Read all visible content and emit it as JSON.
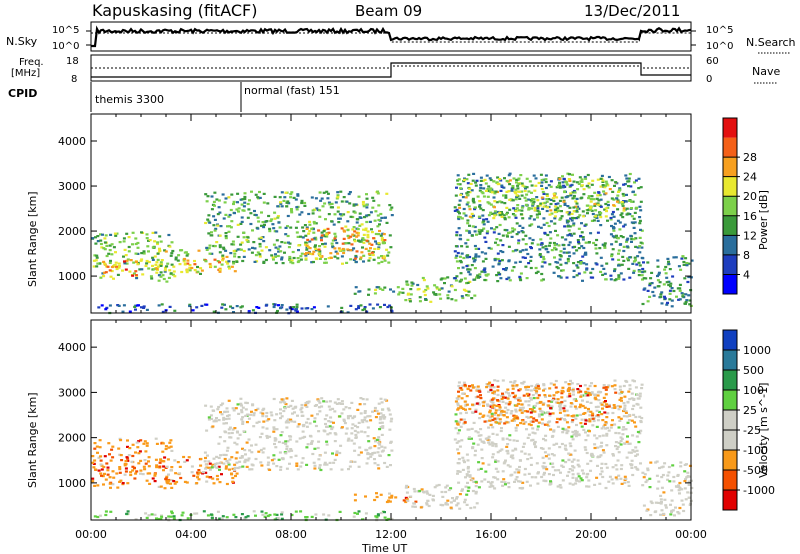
{
  "header": {
    "station": "Kapuskasing (fitACF)",
    "beam": "Beam 09",
    "date": "13/Dec/2011"
  },
  "top_panels": {
    "nsky_label": "N.Sky",
    "nsky_ticks": [
      "10^5",
      "10^0"
    ],
    "nsearch_label": "N.Search",
    "nsearch_ticks": [
      "10^5",
      "10^0"
    ],
    "freq_label": "Freq.",
    "freq_unit": "[MHz]",
    "freq_ticks": [
      "18",
      "8"
    ],
    "nave_label": "Nave",
    "nave_ticks": [
      "60",
      "0"
    ],
    "cpid_label": "CPID",
    "cpid_entries": [
      "themis 3300",
      "normal (fast) 151"
    ]
  },
  "x_axis": {
    "label": "Time UT",
    "ticks": [
      "00:00",
      "04:00",
      "08:00",
      "12:00",
      "16:00",
      "20:00",
      "00:00"
    ]
  },
  "colors": {
    "power": [
      "#0000ff",
      "#1e3dbe",
      "#2a6e9c",
      "#3a9a3a",
      "#7cd04a",
      "#e8e830",
      "#f7a020",
      "#f46018",
      "#e31010"
    ],
    "velocity": [
      "#e00000",
      "#f45000",
      "#f99a1a",
      "#cfcfc6",
      "#cfcfc6",
      "#5fd040",
      "#2a9a4a",
      "#2a7a9a",
      "#1040c0"
    ]
  },
  "chart_data": [
    {
      "type": "heatmap",
      "title": "Power",
      "xlabel": "Time UT",
      "ylabel": "Slant Range [km]",
      "xlim_hours": [
        0,
        24
      ],
      "ylim": [
        180,
        4600
      ],
      "y_ticks": [
        1000,
        2000,
        3000,
        4000
      ],
      "colorbar": {
        "label": "Power [dB]",
        "ticks": [
          "4",
          "8",
          "12",
          "16",
          "20",
          "24",
          "28"
        ],
        "range": [
          0,
          30
        ]
      },
      "echo_regions": [
        {
          "t": [
            0.0,
            3.2
          ],
          "r": [
            900,
            2000
          ],
          "level": 14
        },
        {
          "t": [
            0.4,
            1.8
          ],
          "r": [
            1000,
            1400
          ],
          "level": 24
        },
        {
          "t": [
            2.5,
            4.4
          ],
          "r": [
            1000,
            1600
          ],
          "level": 16
        },
        {
          "t": [
            3.6,
            5.8
          ],
          "r": [
            1100,
            1450
          ],
          "level": 20
        },
        {
          "t": [
            4.5,
            12.0
          ],
          "r": [
            1300,
            2900
          ],
          "level": 12
        },
        {
          "t": [
            8.5,
            11.8
          ],
          "r": [
            1400,
            2100
          ],
          "level": 22
        },
        {
          "t": [
            10.5,
            13.0
          ],
          "r": [
            600,
            800
          ],
          "level": 12
        },
        {
          "t": [
            12.5,
            15.5
          ],
          "r": [
            450,
            1000
          ],
          "level": 14
        },
        {
          "t": [
            14.5,
            22.0
          ],
          "r": [
            900,
            3300
          ],
          "level": 10
        },
        {
          "t": [
            14.6,
            21.5
          ],
          "r": [
            2300,
            3200
          ],
          "level": 16
        },
        {
          "t": [
            22.0,
            24.0
          ],
          "r": [
            300,
            1500
          ],
          "level": 10
        },
        {
          "t": [
            0.0,
            12.0
          ],
          "r": [
            200,
            400
          ],
          "level": 6
        }
      ]
    },
    {
      "type": "heatmap",
      "title": "Velocity",
      "xlabel": "Time UT",
      "ylabel": "Slant Range [km]",
      "xlim_hours": [
        0,
        24
      ],
      "ylim": [
        180,
        4600
      ],
      "y_ticks": [
        1000,
        2000,
        3000,
        4000
      ],
      "colorbar": {
        "label": "Velocity [m s^-1]",
        "ticks": [
          "1000",
          "500",
          "100",
          "25",
          "-25",
          "-100",
          "-500",
          "-1000"
        ]
      },
      "echo_regions": [
        {
          "t": [
            0.0,
            3.2
          ],
          "r": [
            900,
            2000
          ],
          "v": -300
        },
        {
          "t": [
            2.5,
            5.8
          ],
          "r": [
            1000,
            1600
          ],
          "v": -200
        },
        {
          "t": [
            4.5,
            12.0
          ],
          "r": [
            1300,
            2900
          ],
          "v": 0
        },
        {
          "t": [
            10.5,
            13.0
          ],
          "r": [
            600,
            800
          ],
          "v": -150
        },
        {
          "t": [
            12.5,
            15.5
          ],
          "r": [
            450,
            1000
          ],
          "v": 0
        },
        {
          "t": [
            14.5,
            22.0
          ],
          "r": [
            900,
            3300
          ],
          "v": 0
        },
        {
          "t": [
            14.6,
            21.5
          ],
          "r": [
            2300,
            3200
          ],
          "v": -250
        },
        {
          "t": [
            22.0,
            24.0
          ],
          "r": [
            300,
            1500
          ],
          "v": 0
        },
        {
          "t": [
            0.0,
            12.0
          ],
          "r": [
            200,
            400
          ],
          "v": 150
        }
      ]
    }
  ]
}
